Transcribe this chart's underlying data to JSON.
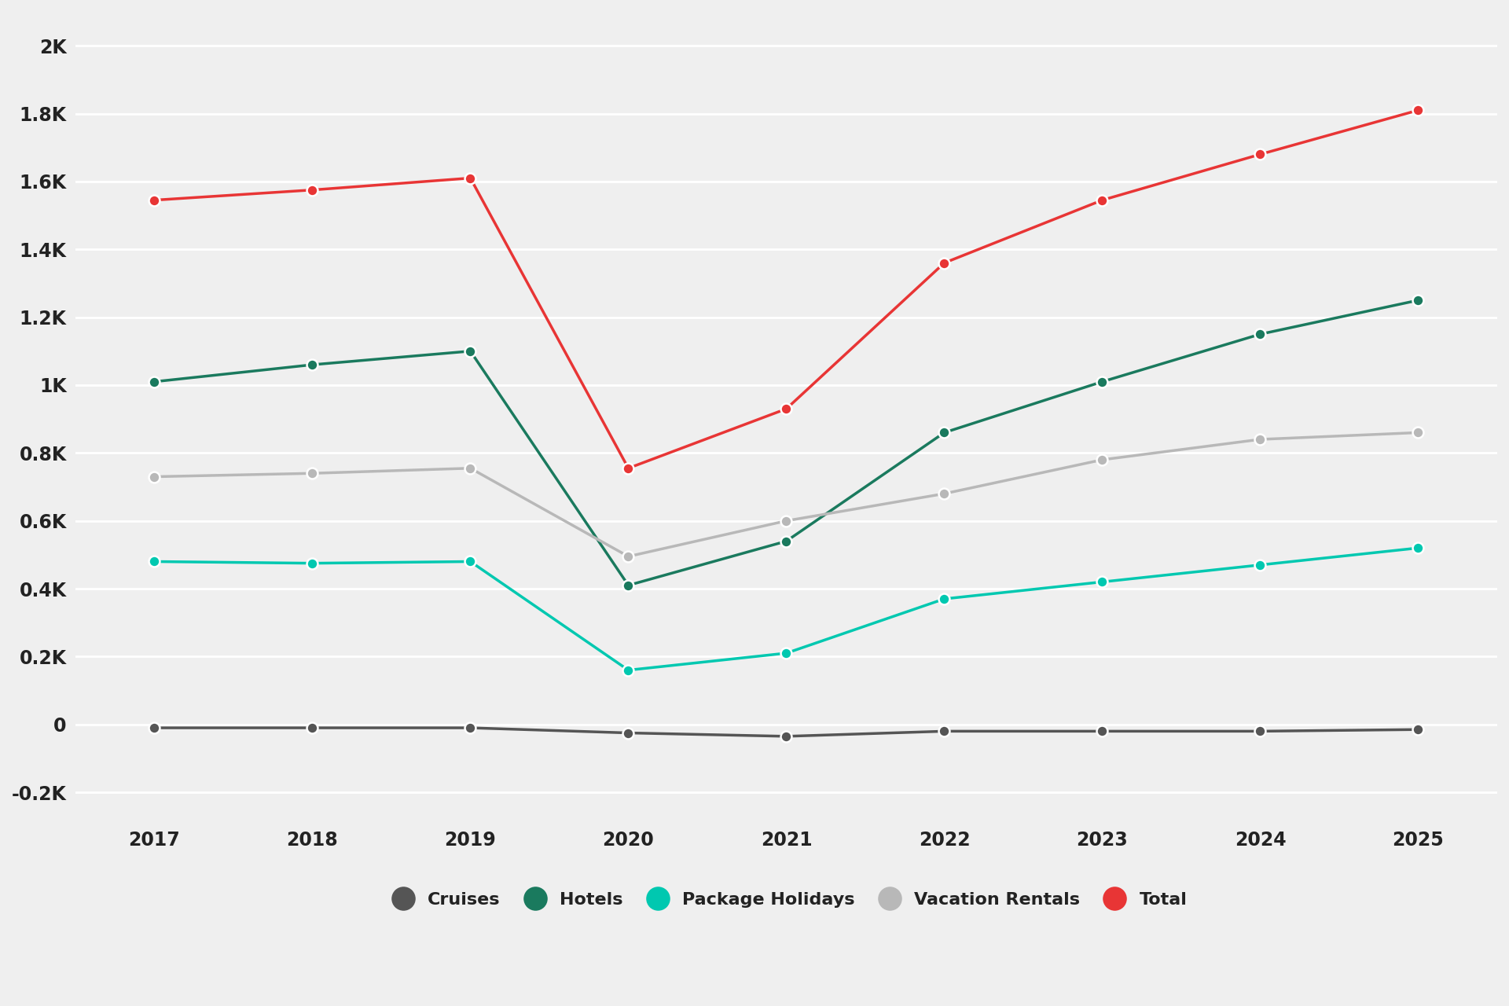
{
  "years": [
    2017,
    2018,
    2019,
    2020,
    2021,
    2022,
    2023,
    2024,
    2025
  ],
  "series": {
    "Cruises": {
      "values": [
        -10,
        -10,
        -10,
        -25,
        -35,
        -20,
        -20,
        -20,
        -15
      ],
      "color": "#555555",
      "zorder": 3
    },
    "Hotels": {
      "values": [
        1010,
        1060,
        1100,
        410,
        540,
        860,
        1010,
        1150,
        1250
      ],
      "color": "#1a7a5e",
      "zorder": 3
    },
    "Package Holidays": {
      "values": [
        480,
        475,
        480,
        160,
        210,
        370,
        420,
        470,
        520
      ],
      "color": "#00c8b0",
      "zorder": 3
    },
    "Vacation Rentals": {
      "values": [
        730,
        740,
        755,
        495,
        600,
        680,
        780,
        840,
        860
      ],
      "color": "#b8b8b8",
      "zorder": 3
    },
    "Total": {
      "values": [
        1545,
        1575,
        1610,
        755,
        930,
        1360,
        1545,
        1680,
        1810
      ],
      "color": "#e83535",
      "zorder": 4
    }
  },
  "yticks": [
    -200,
    0,
    200,
    400,
    600,
    800,
    1000,
    1200,
    1400,
    1600,
    1800,
    2000
  ],
  "ytick_labels": [
    "-0.2K",
    "0",
    "0.2K",
    "0.4K",
    "0.6K",
    "0.8K",
    "1K",
    "1.2K",
    "1.4K",
    "1.6K",
    "1.8K",
    "2K"
  ],
  "ylim": [
    -280,
    2100
  ],
  "xlim": [
    2016.5,
    2025.5
  ],
  "background_color": "#efefef",
  "grid_color": "#ffffff",
  "legend_order": [
    "Cruises",
    "Hotels",
    "Package Holidays",
    "Vacation Rentals",
    "Total"
  ],
  "markersize": 10,
  "linewidth": 2.5,
  "tick_fontsize": 17,
  "legend_fontsize": 16,
  "legend_marker_size": 220
}
